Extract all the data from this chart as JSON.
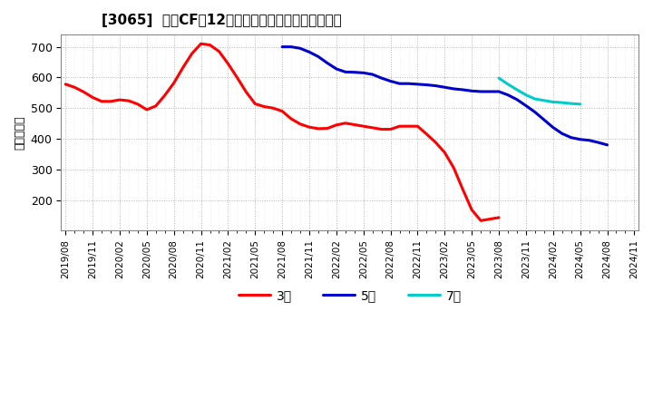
{
  "title": "[3065]  投賄CFの12か月移動合計の標準偏差の推移",
  "ylabel": "（百万円）",
  "ylim": [
    100,
    740
  ],
  "yticks": [
    200,
    300,
    400,
    500,
    600,
    700
  ],
  "background_color": "#ffffff",
  "grid_color": "#aaaaaa",
  "x_start": "2019/08",
  "x_labels_every3": [
    "2019/08",
    "2019/11",
    "2020/02",
    "2020/05",
    "2020/08",
    "2020/11",
    "2021/02",
    "2021/05",
    "2021/08",
    "2021/11",
    "2022/02",
    "2022/05",
    "2022/08",
    "2022/11",
    "2023/02",
    "2023/05",
    "2023/08",
    "2023/11",
    "2024/02",
    "2024/05",
    "2024/08",
    "2024/11"
  ],
  "total_months": 64,
  "series": {
    "3年": {
      "color": "#ff0000",
      "linewidth": 2.2,
      "start_month": 0,
      "values": [
        578,
        568,
        553,
        535,
        522,
        522,
        527,
        524,
        513,
        495,
        507,
        542,
        582,
        632,
        678,
        710,
        706,
        685,
        645,
        600,
        553,
        514,
        505,
        500,
        490,
        465,
        448,
        438,
        433,
        434,
        445,
        451,
        446,
        441,
        436,
        431,
        431,
        441,
        441,
        441,
        415,
        388,
        355,
        305,
        235,
        168,
        133,
        138,
        143
      ]
    },
    "5年": {
      "color": "#0000cc",
      "linewidth": 2.2,
      "start_month": 24,
      "values": [
        700,
        700,
        695,
        683,
        668,
        647,
        628,
        618,
        617,
        615,
        610,
        598,
        588,
        580,
        580,
        578,
        576,
        573,
        568,
        563,
        560,
        556,
        554,
        554,
        554,
        543,
        528,
        508,
        487,
        462,
        437,
        417,
        404,
        398,
        395,
        388,
        380
      ]
    },
    "7年": {
      "color": "#00cccc",
      "linewidth": 2.2,
      "start_month": 48,
      "values": [
        598,
        578,
        560,
        543,
        530,
        525,
        520,
        518,
        515,
        513
      ]
    },
    "10年": {
      "color": "#008800",
      "linewidth": 2.2,
      "start_month": 60,
      "values": []
    }
  }
}
